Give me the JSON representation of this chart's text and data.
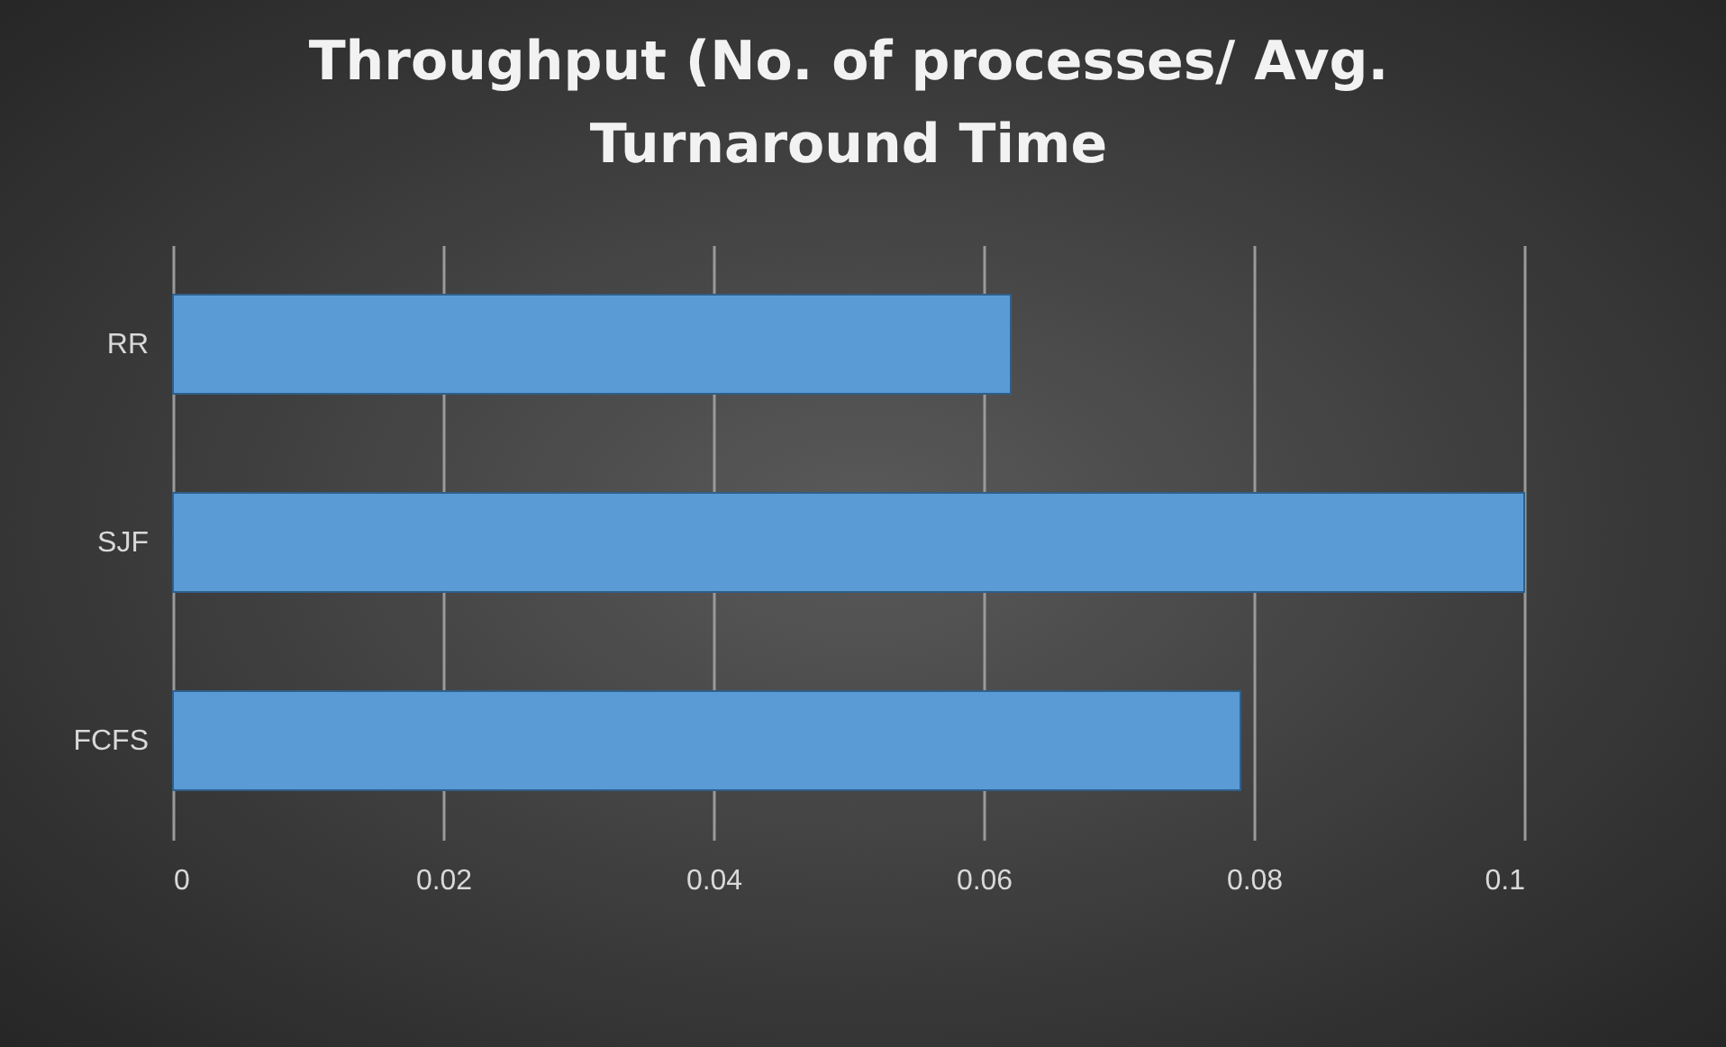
{
  "chart_data": {
    "type": "bar",
    "title": "Throughput (No. of processes/ Avg. Turnaround Time",
    "orientation": "horizontal",
    "categories": [
      "RR",
      "SJF",
      "FCFS"
    ],
    "values": [
      0.062,
      0.1,
      0.079
    ],
    "color": "#5b9bd5",
    "xlim": [
      0,
      0.1
    ],
    "xticks": [
      0,
      0.02,
      0.04,
      0.06,
      0.08,
      0.1
    ],
    "grid": "x"
  }
}
